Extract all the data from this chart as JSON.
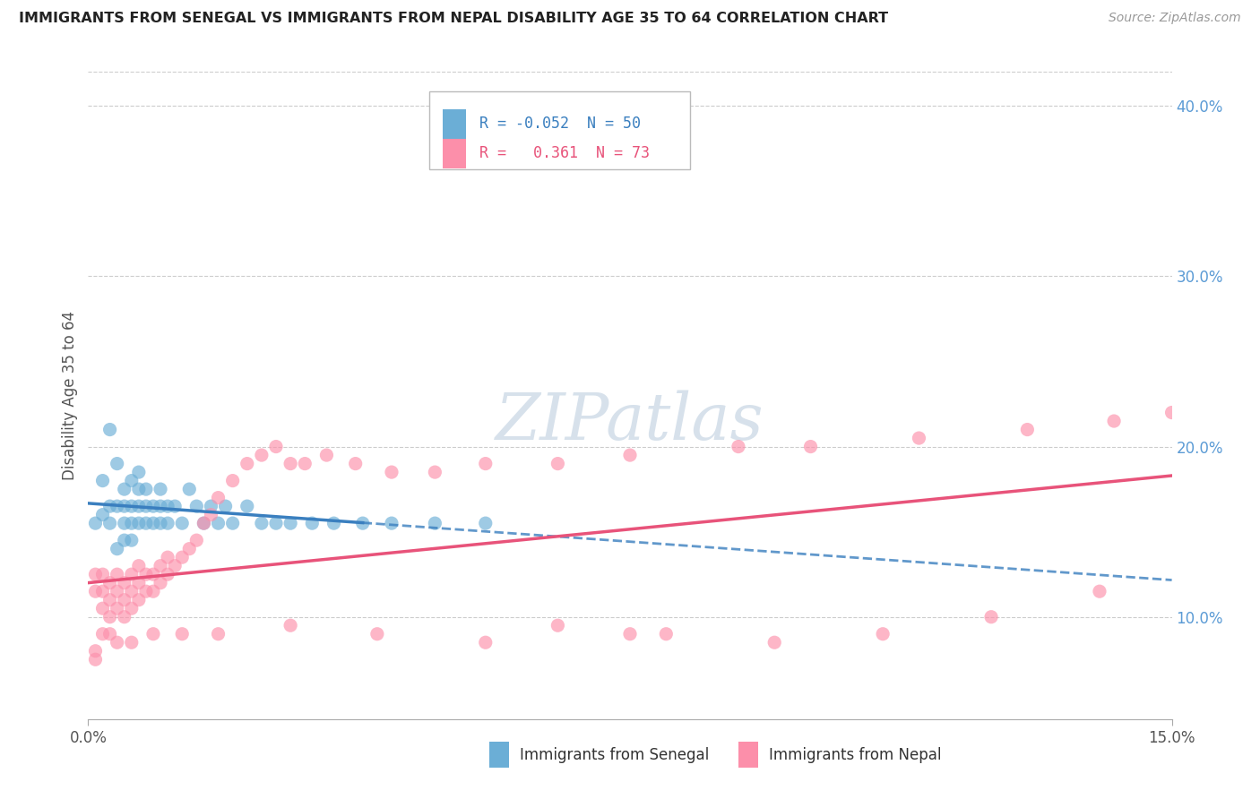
{
  "title": "IMMIGRANTS FROM SENEGAL VS IMMIGRANTS FROM NEPAL DISABILITY AGE 35 TO 64 CORRELATION CHART",
  "source": "Source: ZipAtlas.com",
  "ylabel": "Disability Age 35 to 64",
  "xlim": [
    0.0,
    0.15
  ],
  "ylim": [
    0.04,
    0.42
  ],
  "y_ticks_right": [
    0.1,
    0.2,
    0.3,
    0.4
  ],
  "y_tick_labels_right": [
    "10.0%",
    "20.0%",
    "30.0%",
    "40.0%"
  ],
  "color_senegal": "#6baed6",
  "color_nepal": "#fc8faa",
  "color_line_senegal": "#3a7fbf",
  "color_line_nepal": "#e8537a",
  "watermark_color": "#d0dce8",
  "grid_color": "#cccccc",
  "senegal_x": [
    0.001,
    0.002,
    0.002,
    0.003,
    0.003,
    0.003,
    0.004,
    0.004,
    0.004,
    0.005,
    0.005,
    0.005,
    0.005,
    0.006,
    0.006,
    0.006,
    0.006,
    0.007,
    0.007,
    0.007,
    0.007,
    0.008,
    0.008,
    0.008,
    0.009,
    0.009,
    0.01,
    0.01,
    0.01,
    0.011,
    0.011,
    0.012,
    0.013,
    0.014,
    0.015,
    0.016,
    0.017,
    0.018,
    0.019,
    0.02,
    0.022,
    0.024,
    0.026,
    0.028,
    0.031,
    0.034,
    0.038,
    0.042,
    0.048,
    0.055
  ],
  "senegal_y": [
    0.155,
    0.16,
    0.18,
    0.155,
    0.165,
    0.21,
    0.14,
    0.165,
    0.19,
    0.145,
    0.155,
    0.165,
    0.175,
    0.145,
    0.155,
    0.165,
    0.18,
    0.155,
    0.165,
    0.175,
    0.185,
    0.155,
    0.165,
    0.175,
    0.155,
    0.165,
    0.155,
    0.165,
    0.175,
    0.155,
    0.165,
    0.165,
    0.155,
    0.175,
    0.165,
    0.155,
    0.165,
    0.155,
    0.165,
    0.155,
    0.165,
    0.155,
    0.155,
    0.155,
    0.155,
    0.155,
    0.155,
    0.155,
    0.155,
    0.155
  ],
  "nepal_x": [
    0.001,
    0.001,
    0.002,
    0.002,
    0.002,
    0.003,
    0.003,
    0.003,
    0.004,
    0.004,
    0.004,
    0.005,
    0.005,
    0.005,
    0.006,
    0.006,
    0.006,
    0.007,
    0.007,
    0.007,
    0.008,
    0.008,
    0.009,
    0.009,
    0.01,
    0.01,
    0.011,
    0.011,
    0.012,
    0.013,
    0.014,
    0.015,
    0.016,
    0.017,
    0.018,
    0.02,
    0.022,
    0.024,
    0.026,
    0.028,
    0.03,
    0.033,
    0.037,
    0.042,
    0.048,
    0.055,
    0.065,
    0.075,
    0.09,
    0.1,
    0.115,
    0.13,
    0.142,
    0.15,
    0.065,
    0.08,
    0.095,
    0.11,
    0.125,
    0.14,
    0.075,
    0.055,
    0.04,
    0.028,
    0.018,
    0.013,
    0.009,
    0.006,
    0.004,
    0.003,
    0.002,
    0.001,
    0.001
  ],
  "nepal_y": [
    0.115,
    0.125,
    0.105,
    0.115,
    0.125,
    0.1,
    0.11,
    0.12,
    0.105,
    0.115,
    0.125,
    0.1,
    0.11,
    0.12,
    0.105,
    0.115,
    0.125,
    0.11,
    0.12,
    0.13,
    0.115,
    0.125,
    0.115,
    0.125,
    0.12,
    0.13,
    0.125,
    0.135,
    0.13,
    0.135,
    0.14,
    0.145,
    0.155,
    0.16,
    0.17,
    0.18,
    0.19,
    0.195,
    0.2,
    0.19,
    0.19,
    0.195,
    0.19,
    0.185,
    0.185,
    0.19,
    0.19,
    0.195,
    0.2,
    0.2,
    0.205,
    0.21,
    0.215,
    0.22,
    0.095,
    0.09,
    0.085,
    0.09,
    0.1,
    0.115,
    0.09,
    0.085,
    0.09,
    0.095,
    0.09,
    0.09,
    0.09,
    0.085,
    0.085,
    0.09,
    0.09,
    0.08,
    0.075
  ]
}
